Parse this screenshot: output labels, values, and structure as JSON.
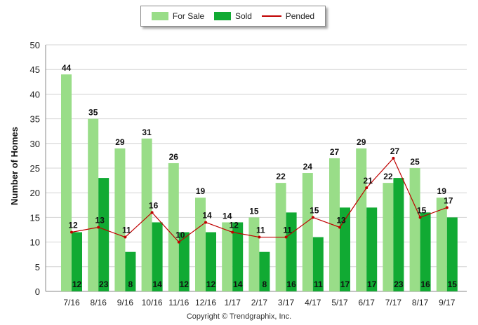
{
  "chart_data": {
    "type": "bar",
    "title": "",
    "xlabel": "",
    "ylabel": "Number of Homes",
    "ylim": [
      0,
      50
    ],
    "yticks": [
      0,
      5,
      10,
      15,
      20,
      25,
      30,
      35,
      40,
      45,
      50
    ],
    "grid": true,
    "legend_placement": "top-center",
    "categories": [
      "7/16",
      "8/16",
      "9/16",
      "10/16",
      "11/16",
      "12/16",
      "1/17",
      "2/17",
      "3/17",
      "4/17",
      "5/17",
      "6/17",
      "7/17",
      "8/17",
      "9/17"
    ],
    "series": [
      {
        "name": "For Sale",
        "kind": "bar",
        "color": "#99dd88",
        "values": [
          44,
          35,
          29,
          31,
          26,
          19,
          14,
          15,
          22,
          24,
          27,
          29,
          22,
          25,
          19
        ]
      },
      {
        "name": "Sold",
        "kind": "bar",
        "color": "#11aa33",
        "values": [
          12,
          23,
          8,
          14,
          12,
          12,
          14,
          8,
          16,
          11,
          17,
          17,
          23,
          16,
          15
        ]
      },
      {
        "name": "Pended",
        "kind": "line",
        "color": "#c00000",
        "values": [
          12,
          13,
          11,
          16,
          10,
          14,
          12,
          11,
          11,
          15,
          13,
          21,
          27,
          15,
          17
        ]
      }
    ]
  },
  "footer": {
    "copyright": "Copyright © Trendgraphix, Inc."
  }
}
